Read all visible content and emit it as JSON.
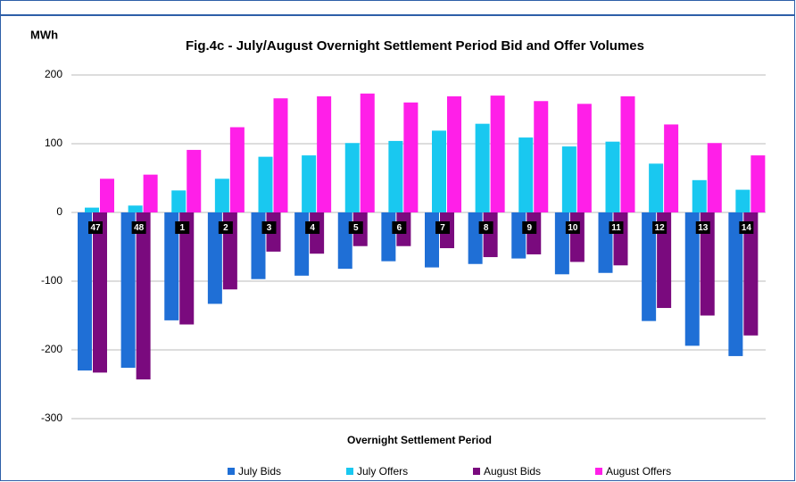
{
  "chart_data": {
    "type": "bar",
    "title": "Fig.4c - July/August Overnight Settlement Period Bid and Offer Volumes",
    "y_label": "MWh",
    "x_label": "Overnight Settlement Period",
    "categories": [
      "47",
      "48",
      "1",
      "2",
      "3",
      "4",
      "5",
      "6",
      "7",
      "8",
      "9",
      "10",
      "11",
      "12",
      "13",
      "14"
    ],
    "series": [
      {
        "name": "July Bids",
        "color": "#1f6fd6",
        "values": [
          -230,
          -226,
          -157,
          -133,
          -97,
          -92,
          -82,
          -71,
          -80,
          -75,
          -67,
          -90,
          -88,
          -158,
          -194,
          -209
        ]
      },
      {
        "name": "July Offers",
        "color": "#19c8f0",
        "values": [
          7,
          10,
          32,
          49,
          81,
          83,
          101,
          104,
          119,
          129,
          109,
          96,
          103,
          71,
          47,
          33
        ]
      },
      {
        "name": "August Bids",
        "color": "#7a0a7e",
        "values": [
          -233,
          -243,
          -163,
          -112,
          -57,
          -60,
          -49,
          -49,
          -52,
          -65,
          -61,
          -72,
          -77,
          -139,
          -150,
          -179
        ]
      },
      {
        "name": "August Offers",
        "color": "#ff1fe8",
        "values": [
          49,
          55,
          91,
          124,
          166,
          169,
          173,
          160,
          169,
          170,
          162,
          158,
          169,
          128,
          101,
          83
        ]
      }
    ],
    "ylim": [
      -300,
      200
    ],
    "yticks": [
      200,
      100,
      0,
      -100,
      -200,
      -300
    ],
    "grid": true,
    "legend": "bottom"
  }
}
